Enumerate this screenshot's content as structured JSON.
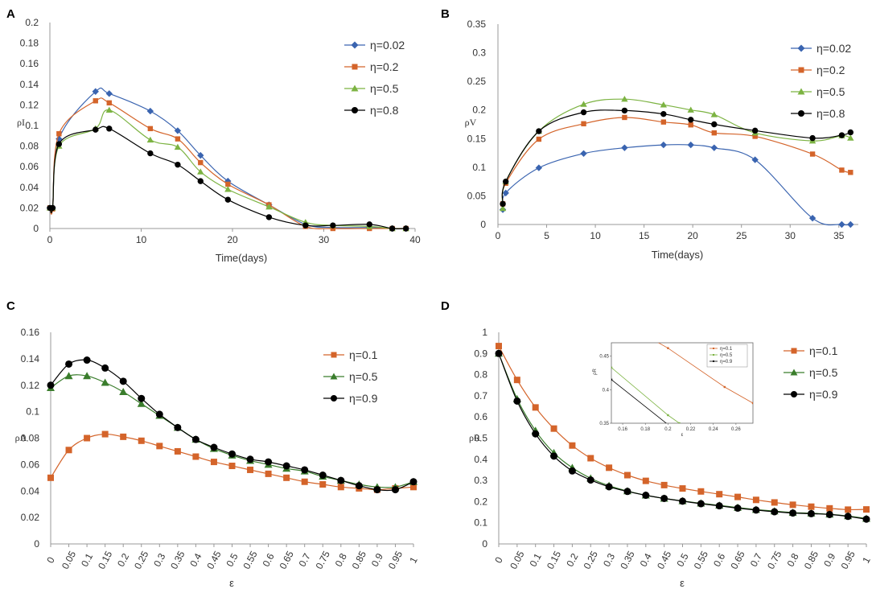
{
  "chart_data": [
    {
      "id": "A",
      "type": "line",
      "panel_label": "A",
      "xlabel": "Time(days)",
      "ylabel": "ρI",
      "xlim": [
        0,
        40
      ],
      "ylim": [
        0,
        0.2
      ],
      "xticks": [
        "0",
        "10",
        "20",
        "30",
        "40"
      ],
      "yticks": [
        "0",
        "0.02",
        "0.04",
        "0.06",
        "0.08",
        "0.1",
        "0.12",
        "0.14",
        "0.16",
        "0.18",
        "0.2"
      ],
      "legend_position": "top-right",
      "series": [
        {
          "name": "η=0.02",
          "color": "#3a64b0",
          "marker": "diamond",
          "x": [
            0,
            0.3,
            1,
            5,
            6.5,
            11,
            14,
            16.5,
            19.5,
            24,
            28,
            31,
            35,
            37.5,
            39
          ],
          "y": [
            0.02,
            0.02,
            0.087,
            0.133,
            0.131,
            0.114,
            0.095,
            0.071,
            0.046,
            0.023,
            0.004,
            0.001,
            0.001,
            0,
            0
          ]
        },
        {
          "name": "η=0.2",
          "color": "#d4642a",
          "marker": "square",
          "x": [
            0,
            0.3,
            1,
            5,
            6.5,
            11,
            14,
            16.5,
            19.5,
            24,
            28,
            31,
            35,
            37.5,
            39
          ],
          "y": [
            0.02,
            0.019,
            0.092,
            0.124,
            0.122,
            0.097,
            0.087,
            0.064,
            0.043,
            0.023,
            0.002,
            0,
            0,
            0,
            0
          ]
        },
        {
          "name": "η=0.5",
          "color": "#7cb342",
          "marker": "triangle",
          "x": [
            0,
            0.3,
            1,
            5,
            6.5,
            11,
            14,
            16.5,
            19.5,
            24,
            28,
            31,
            35,
            37.5,
            39
          ],
          "y": [
            0.02,
            0.02,
            0.08,
            0.097,
            0.115,
            0.086,
            0.079,
            0.055,
            0.038,
            0.021,
            0.006,
            0.003,
            0.002,
            0,
            0
          ]
        },
        {
          "name": "η=0.8",
          "color": "#000000",
          "marker": "circle",
          "x": [
            0,
            0.3,
            1,
            5,
            6.5,
            11,
            14,
            16.5,
            19.5,
            24,
            28,
            31,
            35,
            37.5,
            39
          ],
          "y": [
            0.02,
            0.02,
            0.082,
            0.096,
            0.097,
            0.073,
            0.062,
            0.046,
            0.028,
            0.011,
            0.003,
            0.003,
            0.004,
            0,
            0
          ]
        }
      ]
    },
    {
      "id": "B",
      "type": "line",
      "panel_label": "B",
      "xlabel": "Time(days)",
      "ylabel": "ρV",
      "xlim": [
        0,
        37
      ],
      "ylim": [
        0,
        0.35
      ],
      "xticks": [
        "0",
        "5",
        "10",
        "15",
        "20",
        "25",
        "30",
        "35"
      ],
      "xtick_values": [
        0,
        5,
        10,
        15,
        20,
        25,
        30,
        35
      ],
      "yticks": [
        "0",
        "0.05",
        "0.1",
        "0.15",
        "0.2",
        "0.25",
        "0.3",
        "0.35"
      ],
      "legend_position": "top-right",
      "series": [
        {
          "name": "η=0.02",
          "color": "#3a64b0",
          "marker": "diamond",
          "x": [
            0.5,
            0.8,
            4.2,
            8.8,
            13,
            17,
            19.8,
            22.2,
            26.4,
            32.3,
            35.3,
            36.2
          ],
          "y": [
            0.026,
            0.055,
            0.099,
            0.124,
            0.134,
            0.139,
            0.139,
            0.134,
            0.113,
            0.011,
            0,
            0
          ]
        },
        {
          "name": "η=0.2",
          "color": "#d4642a",
          "marker": "square",
          "x": [
            0.5,
            0.8,
            4.2,
            8.8,
            13,
            17,
            19.8,
            22.2,
            26.4,
            32.3,
            35.3,
            36.2
          ],
          "y": [
            0.036,
            0.072,
            0.149,
            0.176,
            0.187,
            0.179,
            0.174,
            0.16,
            0.154,
            0.123,
            0.095,
            0.091
          ]
        },
        {
          "name": "η=0.5",
          "color": "#7cb342",
          "marker": "triangle",
          "x": [
            0.5,
            0.8,
            4.2,
            8.8,
            13,
            17,
            19.8,
            22.2,
            26.4,
            32.3,
            35.3,
            36.2
          ],
          "y": [
            0.028,
            0.075,
            0.163,
            0.21,
            0.219,
            0.209,
            0.2,
            0.192,
            0.16,
            0.146,
            0.155,
            0.151
          ]
        },
        {
          "name": "η=0.8",
          "color": "#000000",
          "marker": "circle",
          "x": [
            0.5,
            0.8,
            4.2,
            8.8,
            13,
            17,
            19.8,
            22.2,
            26.4,
            32.3,
            35.3,
            36.2
          ],
          "y": [
            0.036,
            0.075,
            0.163,
            0.196,
            0.199,
            0.193,
            0.183,
            0.175,
            0.164,
            0.151,
            0.156,
            0.161
          ]
        }
      ]
    },
    {
      "id": "C",
      "type": "line",
      "panel_label": "C",
      "xlabel": "ε",
      "ylabel": "ρA",
      "ylim": [
        0,
        0.16
      ],
      "categories": [
        "0",
        "0.05",
        "0.1",
        "0.15",
        "0.2",
        "0.25",
        "0.3",
        "0.35",
        "0.4",
        "0.45",
        "0.5",
        "0.55",
        "0.6",
        "0.65",
        "0.7",
        "0.75",
        "0.8",
        "0.85",
        "0.9",
        "0.95",
        "1"
      ],
      "yticks": [
        "0",
        "0.02",
        "0.04",
        "0.06",
        "0.08",
        "0.1",
        "0.12",
        "0.14",
        "0.16"
      ],
      "legend_position": "top-right",
      "series": [
        {
          "name": "η=0.1",
          "color": "#d4642a",
          "marker": "square",
          "values": [
            0.05,
            0.071,
            0.08,
            0.083,
            0.081,
            0.078,
            0.074,
            0.07,
            0.066,
            0.062,
            0.059,
            0.056,
            0.053,
            0.05,
            0.047,
            0.045,
            0.043,
            0.042,
            0.041,
            0.042,
            0.043
          ]
        },
        {
          "name": "η=0.5",
          "color": "#3a7d2c",
          "marker": "triangle",
          "values": [
            0.118,
            0.127,
            0.127,
            0.122,
            0.115,
            0.106,
            0.097,
            0.088,
            0.079,
            0.072,
            0.067,
            0.063,
            0.06,
            0.057,
            0.055,
            0.051,
            0.048,
            0.045,
            0.043,
            0.043,
            0.047
          ]
        },
        {
          "name": "η=0.9",
          "color": "#000000",
          "marker": "circle",
          "values": [
            0.12,
            0.136,
            0.139,
            0.133,
            0.123,
            0.11,
            0.098,
            0.088,
            0.079,
            0.073,
            0.068,
            0.064,
            0.062,
            0.059,
            0.056,
            0.052,
            0.048,
            0.044,
            0.041,
            0.041,
            0.047
          ]
        }
      ]
    },
    {
      "id": "D",
      "type": "line",
      "panel_label": "D",
      "xlabel": "ε",
      "ylabel": "ρR",
      "ylim": [
        0,
        1
      ],
      "categories": [
        "0",
        "0.05",
        "0.1",
        "0.15",
        "0.2",
        "0.25",
        "0.3",
        "0.35",
        "0.4",
        "0.45",
        "0.5",
        "0.55",
        "0.6",
        "0.65",
        "0.7",
        "0.75",
        "0.8",
        "0.85",
        "0.9",
        "0.95",
        "1"
      ],
      "yticks": [
        "0",
        "0.1",
        "0.2",
        "0.3",
        "0.4",
        "0.5",
        "0.6",
        "0.7",
        "0.8",
        "0.9",
        "1"
      ],
      "legend_position": "top-right",
      "series": [
        {
          "name": "η=0.1",
          "color": "#d4642a",
          "marker": "square",
          "values": [
            0.935,
            0.775,
            0.645,
            0.545,
            0.465,
            0.405,
            0.36,
            0.325,
            0.298,
            0.278,
            0.262,
            0.248,
            0.235,
            0.222,
            0.208,
            0.196,
            0.185,
            0.176,
            0.168,
            0.162,
            0.163
          ]
        },
        {
          "name": "η=0.5",
          "color": "#3a7d2c",
          "marker": "triangle",
          "values": [
            0.9,
            0.685,
            0.535,
            0.43,
            0.36,
            0.31,
            0.275,
            0.25,
            0.23,
            0.215,
            0.203,
            0.192,
            0.182,
            0.172,
            0.162,
            0.155,
            0.148,
            0.145,
            0.14,
            0.132,
            0.12
          ]
        },
        {
          "name": "η=0.9",
          "color": "#000000",
          "marker": "circle",
          "values": [
            0.9,
            0.675,
            0.52,
            0.415,
            0.345,
            0.302,
            0.27,
            0.248,
            0.23,
            0.215,
            0.202,
            0.19,
            0.18,
            0.169,
            0.16,
            0.152,
            0.146,
            0.143,
            0.139,
            0.13,
            0.117
          ]
        }
      ],
      "inset": {
        "xlabel": "ε",
        "ylabel": "ρR",
        "xlim": [
          0.15,
          0.275
        ],
        "ylim": [
          0.35,
          0.47
        ],
        "xticks": [
          "0.16",
          "0.18",
          "0.2",
          "0.22",
          "0.24",
          "0.26"
        ],
        "xtick_values": [
          0.16,
          0.18,
          0.2,
          0.22,
          0.24,
          0.26
        ],
        "yticks": [
          "0.35",
          "0.4",
          "0.45"
        ],
        "ytick_values": [
          0.35,
          0.4,
          0.45
        ],
        "legend": [
          "η=0.1",
          "η=0.5",
          "η=0.9"
        ],
        "series": [
          {
            "name": "η=0.1",
            "color": "#d4642a",
            "x": [
              0.15,
              0.2,
              0.25,
              0.275
            ],
            "y": [
              0.51,
              0.462,
              0.404,
              0.38
            ]
          },
          {
            "name": "η=0.5",
            "color": "#7cb342",
            "x": [
              0.15,
              0.2,
              0.21
            ],
            "y": [
              0.433,
              0.362,
              0.35
            ]
          },
          {
            "name": "η=0.9",
            "color": "#000000",
            "x": [
              0.15,
              0.2
            ],
            "y": [
              0.415,
              0.348
            ]
          }
        ]
      }
    }
  ]
}
